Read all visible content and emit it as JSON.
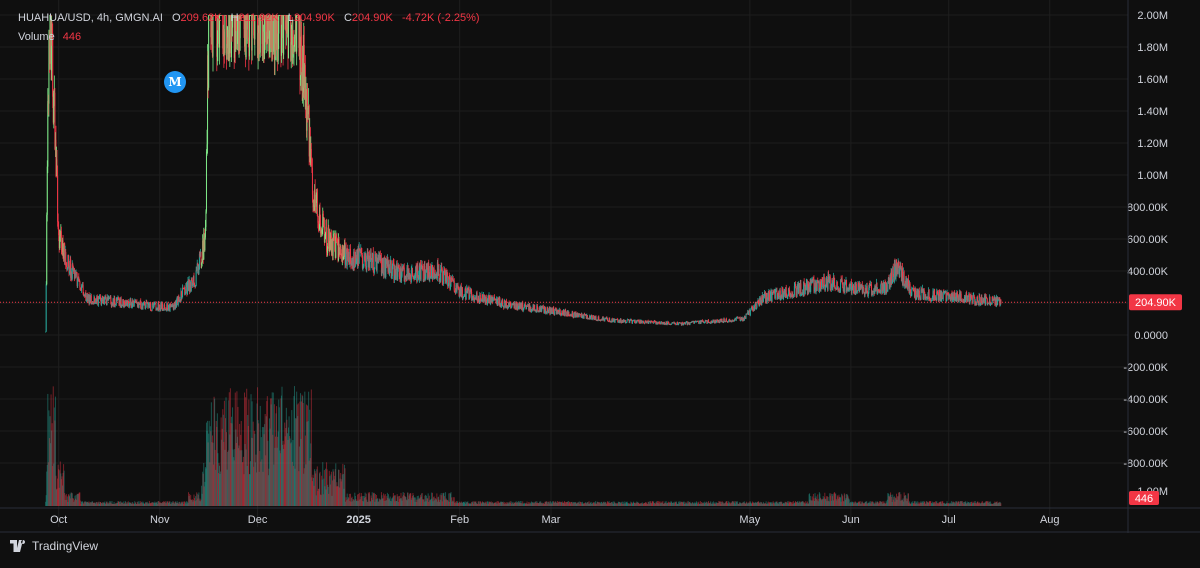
{
  "legend": {
    "symbol": "HUAHUA/USD",
    "interval": "4h",
    "source": "GMGN.AI",
    "o_label": "O",
    "o_value": "209.62K",
    "h_label": "H",
    "h_value": "211.92K",
    "l_label": "L",
    "l_value": "204.90K",
    "c_label": "C",
    "c_value": "204.90K",
    "change": "-4.72K (-2.25%)",
    "volume_label": "Volume",
    "volume_value": "446"
  },
  "marker_label": "M",
  "brand": "TradingView",
  "colors": {
    "background": "#0f0f0f",
    "up": "#26a69a",
    "up_bright": "#7ee787",
    "down": "#f23645",
    "grid": "#1e1e1e",
    "axis_text": "#d1d4dc",
    "price_label_bg": "#f23645",
    "marker": "#2196f3"
  },
  "chart_data": {
    "type": "candlestick",
    "y_axis": {
      "min": -1000000,
      "max": 2000000,
      "ticks": [
        2000000,
        1800000,
        1600000,
        1400000,
        1200000,
        1000000,
        800000,
        600000,
        400000,
        200000,
        0,
        -200000,
        -400000,
        -600000,
        -800000
      ],
      "tick_labels": [
        "2.00M",
        "1.80M",
        "1.60M",
        "1.40M",
        "1.20M",
        "1.00M",
        "800.00K",
        "600.00K",
        "400.00K",
        "",
        "0.0000",
        "-200.00K",
        "-400.00K",
        "-600.00K",
        "-800.00K"
      ]
    },
    "x_axis": {
      "labels": [
        "Oct",
        "Nov",
        "Dec",
        "2025",
        "Feb",
        "Mar",
        "May",
        "Jun",
        "Jul",
        "Aug"
      ],
      "label_dates": [
        "2024-10-01",
        "2024-11-01",
        "2024-12-01",
        "2025-01-01",
        "2025-02-01",
        "2025-03-01",
        "2025-05-01",
        "2025-06-01",
        "2025-07-01",
        "2025-08-01"
      ],
      "start": "2024-09-13",
      "end": "2025-08-25"
    },
    "current_price": 204900,
    "current_price_label": "204.90K",
    "volume_last_label": "446",
    "volume_axis_label": "-1.00M",
    "price_path": [
      [
        "2024-09-27",
        20000
      ],
      [
        "2024-09-28",
        2000000
      ],
      [
        "2024-09-29",
        1700000
      ],
      [
        "2024-10-01",
        600000
      ],
      [
        "2024-10-05",
        400000
      ],
      [
        "2024-10-10",
        220000
      ],
      [
        "2024-10-20",
        200000
      ],
      [
        "2024-10-30",
        180000
      ],
      [
        "2024-11-05",
        170000
      ],
      [
        "2024-11-08",
        260000
      ],
      [
        "2024-11-12",
        350000
      ],
      [
        "2024-11-15",
        600000
      ],
      [
        "2024-11-16",
        2000000
      ],
      [
        "2024-12-13",
        2000000
      ],
      [
        "2024-12-15",
        1700000
      ],
      [
        "2024-12-18",
        900000
      ],
      [
        "2024-12-22",
        600000
      ],
      [
        "2024-12-28",
        500000
      ],
      [
        "2025-01-05",
        450000
      ],
      [
        "2025-01-15",
        380000
      ],
      [
        "2025-01-25",
        400000
      ],
      [
        "2025-02-01",
        270000
      ],
      [
        "2025-02-15",
        190000
      ],
      [
        "2025-03-01",
        150000
      ],
      [
        "2025-03-20",
        90000
      ],
      [
        "2025-04-10",
        70000
      ],
      [
        "2025-04-29",
        100000
      ],
      [
        "2025-05-05",
        230000
      ],
      [
        "2025-05-15",
        280000
      ],
      [
        "2025-05-25",
        330000
      ],
      [
        "2025-06-05",
        280000
      ],
      [
        "2025-06-12",
        300000
      ],
      [
        "2025-06-15",
        420000
      ],
      [
        "2025-06-20",
        260000
      ],
      [
        "2025-07-01",
        240000
      ],
      [
        "2025-07-10",
        220000
      ],
      [
        "2025-07-17",
        204900
      ]
    ]
  }
}
